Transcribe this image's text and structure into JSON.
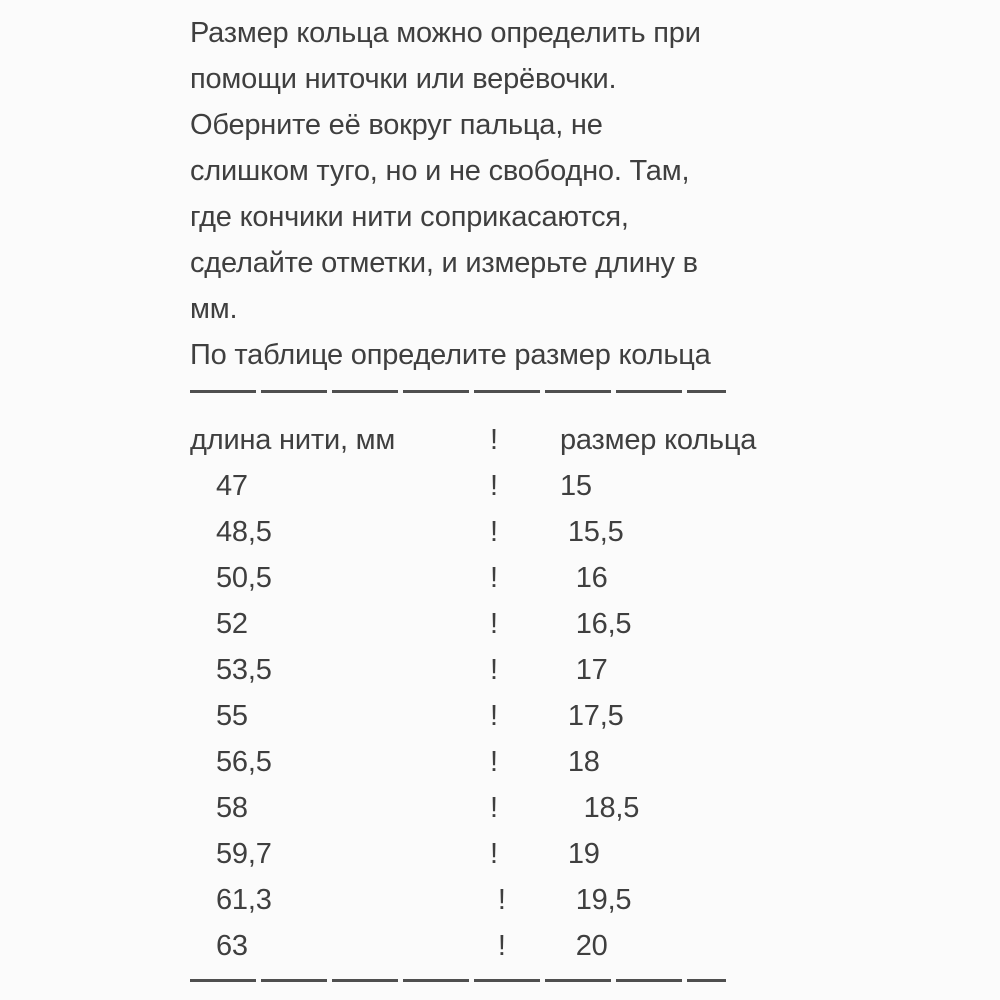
{
  "page": {
    "background": "#fbfbfb",
    "text_color": "#3f3f3f"
  },
  "instructions": {
    "lines": [
      "Размер кольца можно определить при",
      "помощи ниточки или верёвочки.",
      "Оберните её вокруг пальца, не",
      "слишком туго, но и не свободно. Там,",
      "где кончики нити соприкасаются,",
      "сделайте отметки, и измерьте длину в",
      "мм.",
      "По таблице определите размер кольца"
    ]
  },
  "table": {
    "header": {
      "col1": "длина нити, мм",
      "separator": "!",
      "col2": "размер кольца"
    },
    "rows": [
      {
        "length": "47",
        "sep": "!",
        "size": "15"
      },
      {
        "length": "48,5",
        "sep": "!",
        "size": " 15,5"
      },
      {
        "length": "50,5",
        "sep": "!",
        "size": "  16"
      },
      {
        "length": "52",
        "sep": "!",
        "size": "  16,5"
      },
      {
        "length": "53,5",
        "sep": "!",
        "size": "  17"
      },
      {
        "length": "55",
        "sep": "!",
        "size": " 17,5"
      },
      {
        "length": "56,5",
        "sep": "!",
        "size": " 18"
      },
      {
        "length": "58",
        "sep": "!",
        "size": "   18,5"
      },
      {
        "length": "59,7",
        "sep": "!",
        "size": " 19"
      },
      {
        "length": "61,3",
        "sep": " !",
        "size": "  19,5"
      },
      {
        "length": "63",
        "sep": " !",
        "size": "  20"
      }
    ]
  }
}
